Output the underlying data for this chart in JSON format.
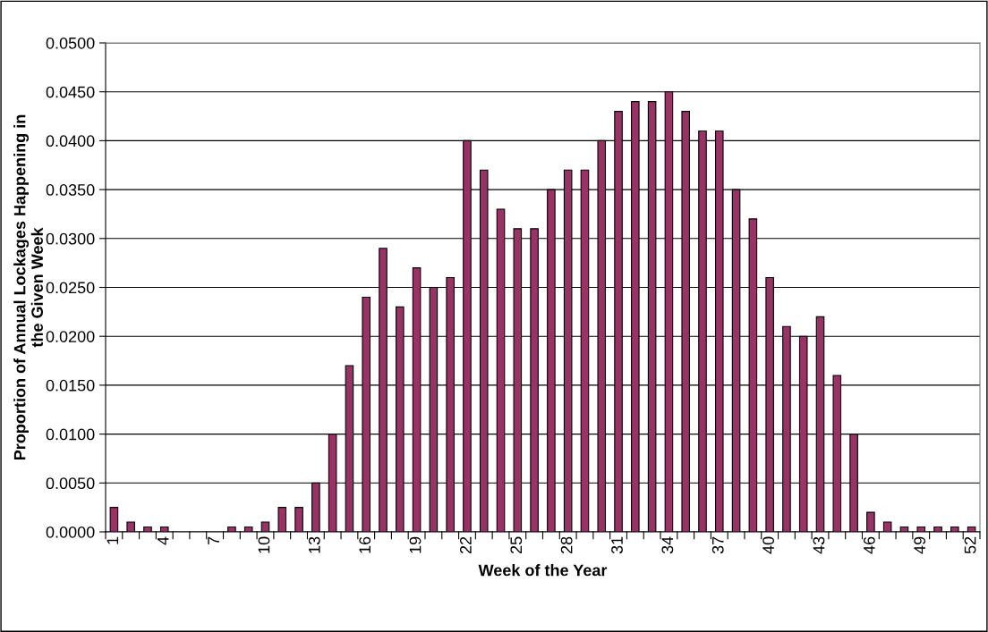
{
  "chart_data": {
    "type": "bar",
    "xlabel": "Week of the Year",
    "ylabel": "Proportion of Annual Lockages Happening in\nthe Given Week",
    "categories": [
      "1",
      null,
      null,
      "4",
      null,
      null,
      "7",
      null,
      null,
      "10",
      null,
      null,
      "13",
      null,
      null,
      "16",
      null,
      null,
      "19",
      null,
      null,
      "22",
      null,
      null,
      "25",
      null,
      null,
      "28",
      null,
      null,
      "31",
      null,
      null,
      "34",
      null,
      null,
      "37",
      null,
      null,
      "40",
      null,
      null,
      "43",
      null,
      null,
      "46",
      null,
      null,
      "49",
      null,
      null,
      "52"
    ],
    "values": [
      0.0025,
      0.001,
      0.0005,
      0.0005,
      0,
      0,
      0,
      0.0005,
      0.0005,
      0.001,
      0.0025,
      0.0025,
      0.005,
      0.01,
      0.017,
      0.024,
      0.029,
      0.023,
      0.027,
      0.025,
      0.026,
      0.04,
      0.037,
      0.033,
      0.031,
      0.031,
      0.035,
      0.037,
      0.037,
      0.04,
      0.043,
      0.044,
      0.044,
      0.045,
      0.043,
      0.041,
      0.041,
      0.035,
      0.032,
      0.026,
      0.021,
      0.02,
      0.022,
      0.016,
      0.01,
      0.002,
      0.001,
      0.0005,
      0.0005,
      0.0005,
      0.0005,
      0.0005
    ],
    "color": "#993366",
    "ylim": [
      0,
      0.05
    ],
    "yticks": [
      {
        "value": 0,
        "label": "0.0000"
      },
      {
        "value": 0.005,
        "label": "0.0050"
      },
      {
        "value": 0.01,
        "label": "0.0100"
      },
      {
        "value": 0.015,
        "label": "0.0150"
      },
      {
        "value": 0.02,
        "label": "0.0200"
      },
      {
        "value": 0.025,
        "label": "0.0250"
      },
      {
        "value": 0.03,
        "label": "0.0300"
      },
      {
        "value": 0.035,
        "label": "0.0350"
      },
      {
        "value": 0.04,
        "label": "0.0400"
      },
      {
        "value": 0.045,
        "label": "0.0450"
      },
      {
        "value": 0.05,
        "label": "0.0500"
      }
    ],
    "grid": "y"
  }
}
